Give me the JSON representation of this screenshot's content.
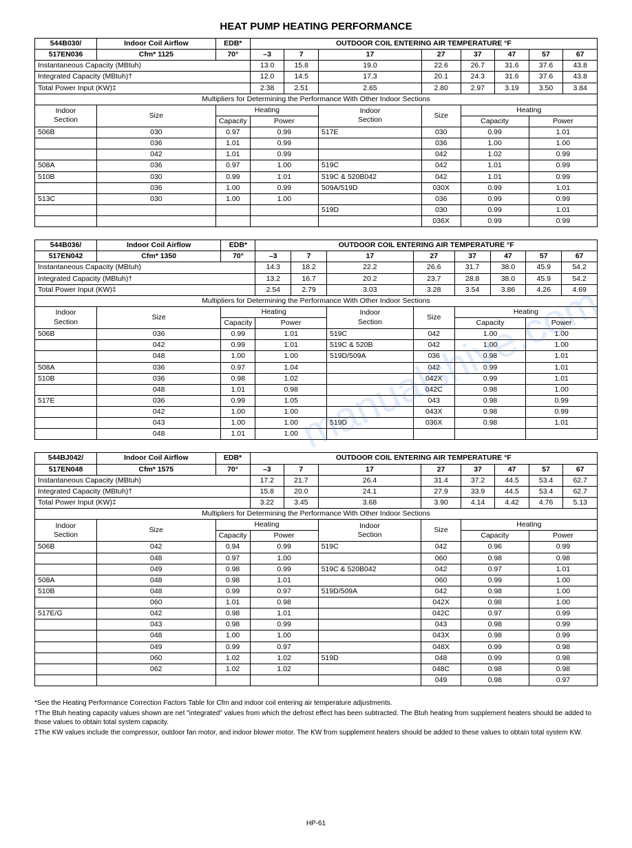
{
  "title": "HEAT PUMP HEATING PERFORMANCE",
  "watermark": "manualshive.com",
  "pagenum": "HP-61",
  "edb_label": "EDB*",
  "edb_value": "70°",
  "airflow_label": "Indoor Coil Airflow",
  "outdoor_header": "OUTDOOR COIL ENTERING AIR TEMPERATURE °F",
  "temps": [
    "–3",
    "7",
    "17",
    "27",
    "37",
    "47",
    "57",
    "67"
  ],
  "row_labels": {
    "inst": "Instantaneous Capacity (MBtuh)",
    "integ": "Integrated Capacity (MBtuh)†",
    "power": "Total Power Input (KW)‡"
  },
  "mult_header": "Multipliers for Determining the Performance With Other Indoor Sections",
  "mult_cols": {
    "indoor": "Indoor",
    "section": "Section",
    "size": "Size",
    "heating": "Heating",
    "capacity": "Capacity",
    "power": "Power"
  },
  "tables": [
    {
      "model1": "544B030/",
      "model2": "517EN036",
      "cfm": "Cfm* 1125",
      "inst": [
        "13.0",
        "15.8",
        "19.0",
        "22.6",
        "26.7",
        "31.6",
        "37.6",
        "43.8"
      ],
      "integ": [
        "12.0",
        "14.5",
        "17.3",
        "20.1",
        "24.3",
        "31.6",
        "37.6",
        "43.8"
      ],
      "power": [
        "2.38",
        "2.51",
        "2.65",
        "2.80",
        "2.97",
        "3.19",
        "3.50",
        "3.84"
      ],
      "left_mult": [
        [
          "506B",
          "030",
          "0.97",
          "0.99"
        ],
        [
          "",
          "036",
          "1.01",
          "0.99"
        ],
        [
          "",
          "042",
          "1.01",
          "0.99"
        ],
        [
          "508A",
          "036",
          "0.97",
          "1.00"
        ],
        [
          "510B",
          "030",
          "0.99",
          "1.01"
        ],
        [
          "",
          "036",
          "1.00",
          "0.99"
        ],
        [
          "513C",
          "030",
          "1.00",
          "1.00"
        ],
        [
          "",
          "",
          "",
          ""
        ]
      ],
      "right_mult": [
        [
          "517E",
          "030",
          "0.99",
          "1.01"
        ],
        [
          "",
          "036",
          "1.00",
          "1.00"
        ],
        [
          "",
          "042",
          "1.02",
          "0.99"
        ],
        [
          "519C",
          "042",
          "1.01",
          "0.99"
        ],
        [
          "519C & 520B042",
          "042",
          "1.01",
          "0.99"
        ],
        [
          "509A/519D",
          "030X",
          "0.99",
          "1.01"
        ],
        [
          "",
          "036",
          "0.99",
          "0.99"
        ],
        [
          "519D",
          "030",
          "0.99",
          "1.01"
        ],
        [
          "",
          "036X",
          "0.99",
          "0.99"
        ]
      ]
    },
    {
      "model1": "544B036/",
      "model2": "517EN042",
      "cfm": "Cfm* 1350",
      "inst": [
        "14.3",
        "18.2",
        "22.2",
        "26.6",
        "31.7",
        "38.0",
        "45.9",
        "54.2"
      ],
      "integ": [
        "13.2",
        "16.7",
        "20.2",
        "23.7",
        "28.8",
        "38.0",
        "45.9",
        "54.2"
      ],
      "power": [
        "2.54",
        "2.79",
        "3.03",
        "3.28",
        "3.54",
        "3.86",
        "4.26",
        "4.69"
      ],
      "left_mult": [
        [
          "506B",
          "036",
          "0.99",
          "1.01"
        ],
        [
          "",
          "042",
          "0.99",
          "1.01"
        ],
        [
          "",
          "048",
          "1.00",
          "1.00"
        ],
        [
          "508A",
          "036",
          "0.97",
          "1.04"
        ],
        [
          "510B",
          "036",
          "0.98",
          "1.02"
        ],
        [
          "",
          "048",
          "1.01",
          "0.98"
        ],
        [
          "517E",
          "036",
          "0.99",
          "1.05"
        ],
        [
          "",
          "042",
          "1.00",
          "1.00"
        ],
        [
          "",
          "043",
          "1.00",
          "1.00"
        ],
        [
          "",
          "048",
          "1.01",
          "1.00"
        ]
      ],
      "right_mult": [
        [
          "519C",
          "042",
          "1.00",
          "1.00"
        ],
        [
          "519C & 520B",
          "042",
          "1.00",
          "1.00"
        ],
        [
          "519D/509A",
          "036",
          "0.98",
          "1.01"
        ],
        [
          "",
          "042",
          "0.99",
          "1.01"
        ],
        [
          "",
          "042X",
          "0.99",
          "1.01"
        ],
        [
          "",
          "042C",
          "0.98",
          "1.00"
        ],
        [
          "",
          "043",
          "0.98",
          "0.99"
        ],
        [
          "",
          "043X",
          "0.98",
          "0.99"
        ],
        [
          "519D",
          "036X",
          "0.98",
          "1.01"
        ]
      ]
    },
    {
      "model1": "544BJ042/",
      "model2": "517EN048",
      "cfm": "Cfm* 1575",
      "inst": [
        "17.2",
        "21.7",
        "26.4",
        "31.4",
        "37.2",
        "44.5",
        "53.4",
        "62.7"
      ],
      "integ": [
        "15.8",
        "20.0",
        "24.1",
        "27.9",
        "33.9",
        "44.5",
        "53.4",
        "62.7"
      ],
      "power": [
        "3.22",
        "3.45",
        "3.68",
        "3.90",
        "4.14",
        "4.42",
        "4.76",
        "5.13"
      ],
      "left_mult": [
        [
          "506B",
          "042",
          "0.94",
          "0.99"
        ],
        [
          "",
          "048",
          "0.97",
          "1.00"
        ],
        [
          "",
          "049",
          "0.98",
          "0.99"
        ],
        [
          "508A",
          "048",
          "0.98",
          "1.01"
        ],
        [
          "510B",
          "048",
          "0.99",
          "0.97"
        ],
        [
          "",
          "060",
          "1.01",
          "0.98"
        ],
        [
          "517E/G",
          "042",
          "0.98",
          "1.01"
        ],
        [
          "",
          "043",
          "0.98",
          "0.99"
        ],
        [
          "",
          "048",
          "1.00",
          "1.00"
        ],
        [
          "",
          "049",
          "0.99",
          "0.97"
        ],
        [
          "",
          "060",
          "1.02",
          "1.02"
        ],
        [
          "",
          "062",
          "1.02",
          "1.02"
        ]
      ],
      "right_mult": [
        [
          "519C",
          "042",
          "0.96",
          "0.99"
        ],
        [
          "",
          "060",
          "0.98",
          "0.98"
        ],
        [
          "519C & 520B042",
          "042",
          "0.97",
          "1.01"
        ],
        [
          "",
          "060",
          "0.99",
          "1.00"
        ],
        [
          "519D/509A",
          "042",
          "0.98",
          "1.00"
        ],
        [
          "",
          "042X",
          "0.98",
          "1.00"
        ],
        [
          "",
          "042C",
          "0.97",
          "0.99"
        ],
        [
          "",
          "043",
          "0.98",
          "0.99"
        ],
        [
          "",
          "043X",
          "0.98",
          "0.99"
        ],
        [
          "",
          "048X",
          "0.99",
          "0.98"
        ],
        [
          "519D",
          "048",
          "0.99",
          "0.98"
        ],
        [
          "",
          "048C",
          "0.98",
          "0.98"
        ],
        [
          "",
          "049",
          "0.98",
          "0.97"
        ]
      ]
    }
  ],
  "footnotes": [
    "*See the Heating Performance Correction Factors Table for Cfm and indoor coil entering air temperature adjustments.",
    "†The Btuh heating capacity values shown are net \"integrated\" values from which the defrost effect has been subtracted. The Btuh heating from supplement heaters should be added to those values to obtain total system capacity.",
    "‡The KW values include the compressor, outdoor fan motor, and indoor blower motor. The KW from supplement heaters should be added to these values to obtain total system KW."
  ]
}
